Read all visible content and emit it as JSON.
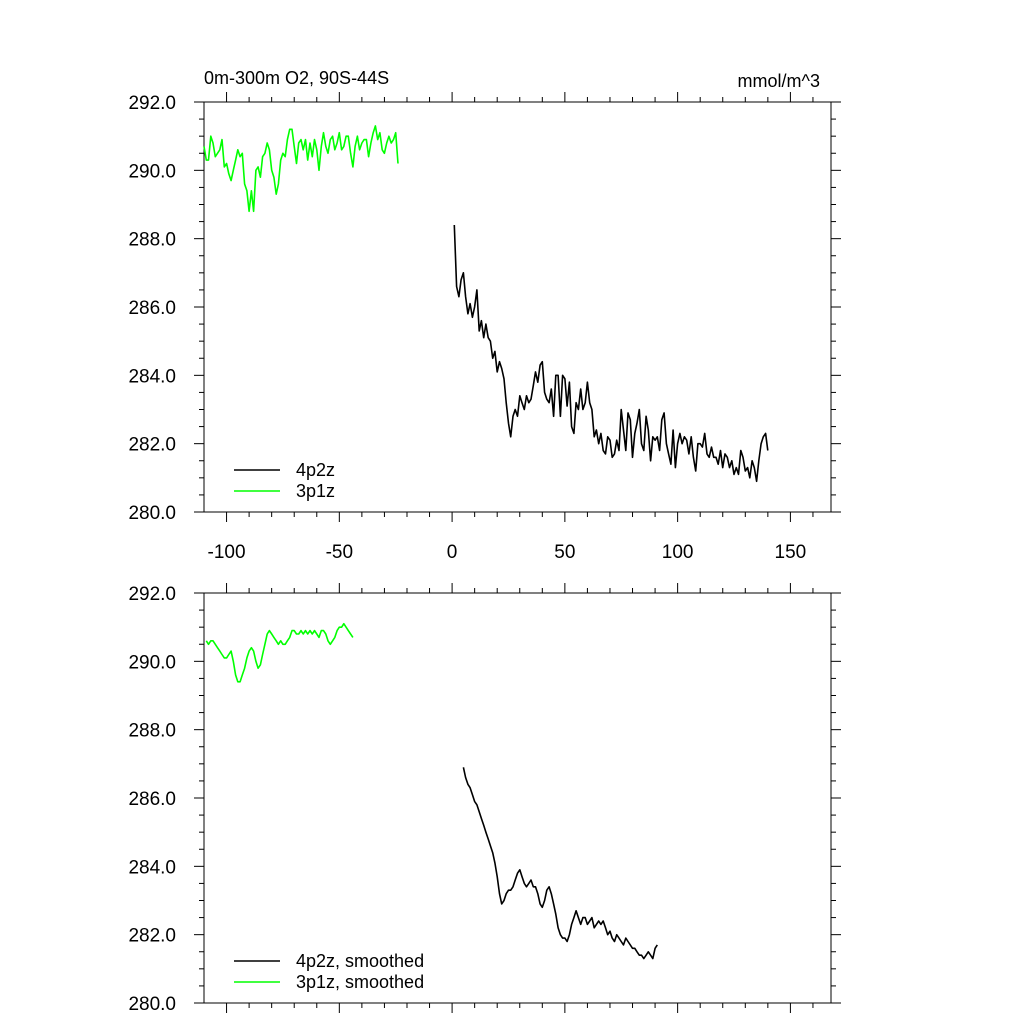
{
  "chart_data": [
    {
      "type": "line",
      "title": "0m-300m O2, 90S-44S",
      "units": "mmol/m^3",
      "xlim": [
        -110,
        168
      ],
      "ylim": [
        280,
        292
      ],
      "xticks": [
        -100,
        -50,
        0,
        50,
        100,
        150
      ],
      "xtick_labels": [
        "-100",
        "-50",
        "0",
        "50",
        "100",
        "150"
      ],
      "yticks": [
        280,
        282,
        284,
        286,
        288,
        290,
        292
      ],
      "ytick_labels": [
        "280.0",
        "282.0",
        "284.0",
        "286.0",
        "288.0",
        "290.0",
        "292.0"
      ],
      "show_xtick_labels": true,
      "legend_position": "bottom-left",
      "series": [
        {
          "name": "4p2z",
          "color": "#000000",
          "x_start": 1,
          "x_step": 1,
          "values": [
            288.4,
            286.6,
            286.3,
            286.8,
            287.0,
            286.3,
            285.8,
            286.1,
            285.7,
            286.0,
            286.5,
            285.3,
            285.6,
            285.1,
            285.5,
            285.1,
            285.0,
            284.5,
            284.7,
            284.1,
            284.4,
            284.2,
            283.9,
            283.2,
            282.6,
            282.2,
            282.8,
            283.0,
            282.8,
            283.4,
            283.2,
            283.0,
            283.4,
            283.2,
            283.3,
            283.7,
            284.1,
            283.8,
            284.3,
            284.4,
            283.5,
            283.3,
            283.2,
            283.6,
            282.8,
            284.0,
            284.0,
            282.8,
            284.0,
            283.9,
            283.1,
            283.8,
            282.5,
            282.3,
            283.2,
            283.0,
            283.6,
            283.0,
            283.2,
            283.8,
            283.2,
            283.0,
            282.2,
            282.4,
            282.0,
            282.3,
            281.8,
            281.7,
            282.2,
            282.1,
            281.6,
            281.7,
            282.1,
            281.8,
            283.0,
            282.4,
            281.8,
            282.9,
            282.7,
            281.6,
            282.3,
            282.6,
            283.0,
            282.0,
            281.8,
            282.8,
            282.4,
            281.5,
            282.2,
            282.1,
            282.2,
            281.8,
            282.7,
            282.9,
            282.0,
            281.7,
            281.4,
            282.4,
            281.3,
            282.0,
            282.3,
            282.0,
            282.2,
            282.1,
            281.7,
            282.2,
            281.6,
            281.2,
            282.0,
            282.0,
            281.9,
            282.3,
            281.7,
            281.6,
            281.9,
            281.6,
            281.6,
            281.4,
            281.8,
            281.3,
            281.7,
            281.6,
            281.3,
            281.5,
            281.1,
            281.3,
            281.1,
            281.8,
            281.6,
            281.2,
            281.3,
            281.0,
            281.5,
            281.3,
            280.9,
            281.5,
            282.0,
            282.2,
            282.3,
            281.8
          ]
        },
        {
          "name": "3p1z",
          "color": "#00ff00",
          "x_start": -110,
          "x_step": 1,
          "values": [
            290.7,
            290.3,
            290.3,
            291.0,
            290.8,
            290.4,
            290.5,
            290.6,
            290.9,
            290.1,
            290.2,
            289.9,
            289.7,
            290.0,
            290.3,
            290.6,
            290.4,
            290.5,
            289.6,
            289.4,
            288.8,
            289.4,
            288.8,
            290.0,
            290.1,
            289.8,
            290.4,
            290.5,
            290.8,
            290.6,
            290.0,
            289.8,
            289.3,
            289.6,
            290.3,
            290.5,
            290.4,
            290.9,
            291.2,
            291.2,
            290.7,
            290.2,
            290.8,
            290.9,
            290.6,
            290.9,
            290.3,
            290.8,
            290.4,
            290.9,
            290.6,
            290.0,
            290.7,
            291.1,
            290.7,
            290.5,
            290.9,
            291.0,
            290.6,
            290.8,
            291.1,
            290.6,
            290.7,
            291.0,
            291.0,
            290.5,
            290.1,
            290.7,
            291.0,
            290.6,
            290.8,
            290.9,
            290.9,
            290.4,
            290.8,
            291.1,
            291.3,
            290.9,
            291.1,
            290.6,
            290.5,
            290.8,
            291.0,
            290.8,
            290.9,
            291.1,
            290.2
          ]
        }
      ]
    },
    {
      "type": "line",
      "xlim": [
        -110,
        168
      ],
      "ylim": [
        280,
        292
      ],
      "xticks": [
        -100,
        -50,
        0,
        50,
        100,
        150
      ],
      "xtick_labels": [],
      "yticks": [
        280,
        282,
        284,
        286,
        288,
        290,
        292
      ],
      "ytick_labels": [
        "280.0",
        "282.0",
        "284.0",
        "286.0",
        "288.0",
        "290.0",
        "292.0"
      ],
      "show_xtick_labels": false,
      "legend_position": "bottom-left",
      "series": [
        {
          "name": "4p2z, smoothed",
          "color": "#000000",
          "x_start": 5,
          "x_step": 1,
          "values": [
            286.9,
            286.6,
            286.4,
            286.3,
            286.1,
            285.9,
            285.8,
            285.6,
            285.4,
            285.2,
            285.0,
            284.8,
            284.6,
            284.4,
            284.1,
            283.7,
            283.2,
            282.9,
            283.0,
            283.2,
            283.3,
            283.3,
            283.4,
            283.6,
            283.8,
            283.9,
            283.7,
            283.5,
            283.4,
            283.5,
            283.6,
            283.4,
            283.4,
            283.2,
            282.9,
            282.8,
            283.0,
            283.3,
            283.4,
            283.2,
            282.9,
            282.6,
            282.2,
            282.0,
            281.9,
            281.9,
            281.8,
            282.0,
            282.3,
            282.5,
            282.7,
            282.5,
            282.3,
            282.5,
            282.5,
            282.3,
            282.4,
            282.5,
            282.2,
            282.3,
            282.4,
            282.3,
            282.4,
            282.2,
            282.0,
            282.1,
            281.9,
            281.8,
            282.0,
            281.9,
            281.8,
            281.7,
            281.9,
            281.8,
            281.7,
            281.6,
            281.6,
            281.5,
            281.4,
            281.4,
            281.3,
            281.4,
            281.5,
            281.4,
            281.3,
            281.6,
            281.7
          ]
        },
        {
          "name": "3p1z, smoothed",
          "color": "#00ff00",
          "x_start": -109,
          "x_step": 1,
          "values": [
            290.6,
            290.5,
            290.6,
            290.6,
            290.5,
            290.4,
            290.3,
            290.2,
            290.1,
            290.1,
            290.2,
            290.3,
            290.0,
            289.6,
            289.4,
            289.4,
            289.6,
            289.8,
            290.1,
            290.3,
            290.4,
            290.3,
            290.0,
            289.8,
            289.9,
            290.2,
            290.5,
            290.8,
            290.9,
            290.8,
            290.7,
            290.6,
            290.5,
            290.6,
            290.5,
            290.5,
            290.6,
            290.7,
            290.9,
            290.9,
            290.8,
            290.8,
            290.9,
            290.8,
            290.9,
            290.8,
            290.9,
            290.8,
            290.9,
            290.8,
            290.7,
            290.9,
            290.9,
            290.8,
            290.6,
            290.5,
            290.6,
            290.7,
            290.9,
            291.0,
            291.0,
            291.1,
            291.0,
            290.9,
            290.8,
            290.7
          ]
        }
      ]
    }
  ]
}
